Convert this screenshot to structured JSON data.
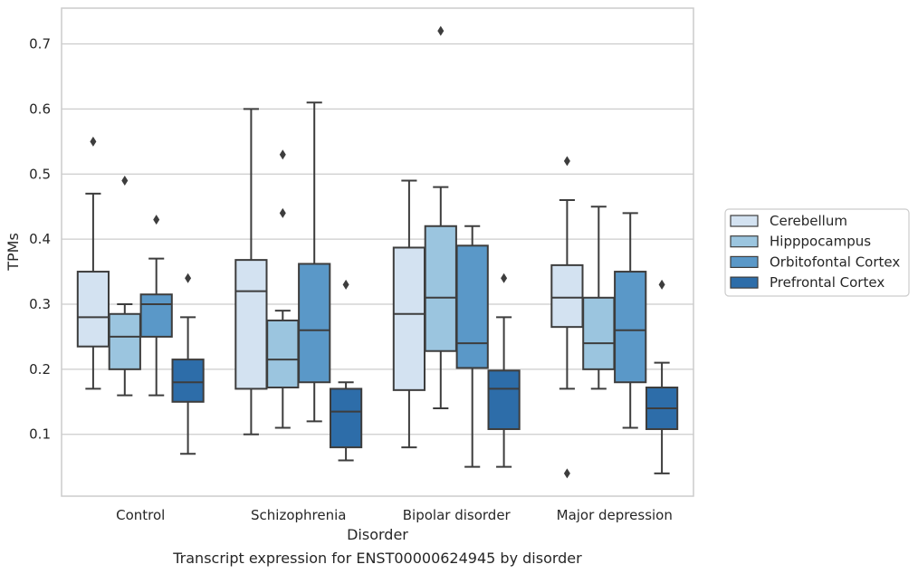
{
  "caption": "Transcript expression for ENST00000624945 by disorder",
  "chart_data": {
    "type": "box",
    "xlabel": "Disorder",
    "ylabel": "TPMs",
    "ylim": [
      0.005,
      0.755
    ],
    "yticks": [
      "0.1",
      "0.2",
      "0.3",
      "0.4",
      "0.5",
      "0.6",
      "0.7"
    ],
    "grid": "horizontal",
    "legend_position": "right",
    "categories": [
      "Control",
      "Schizophrenia",
      "Bipolar disorder",
      "Major depression"
    ],
    "series": [
      {
        "name": "Cerebellum",
        "color": "#d3e2f1",
        "boxes": [
          {
            "whisker_low": 0.17,
            "q1": 0.235,
            "median": 0.28,
            "q3": 0.35,
            "whisker_high": 0.47,
            "outliers": [
              0.55
            ]
          },
          {
            "whisker_low": 0.1,
            "q1": 0.17,
            "median": 0.32,
            "q3": 0.368,
            "whisker_high": 0.6,
            "outliers": []
          },
          {
            "whisker_low": 0.08,
            "q1": 0.168,
            "median": 0.285,
            "q3": 0.387,
            "whisker_high": 0.49,
            "outliers": []
          },
          {
            "whisker_low": 0.17,
            "q1": 0.265,
            "median": 0.31,
            "q3": 0.36,
            "whisker_high": 0.46,
            "outliers": [
              0.52,
              0.04
            ]
          }
        ]
      },
      {
        "name": "Hipppocampus",
        "color": "#9bc5df",
        "boxes": [
          {
            "whisker_low": 0.16,
            "q1": 0.2,
            "median": 0.25,
            "q3": 0.285,
            "whisker_high": 0.3,
            "outliers": [
              0.49
            ]
          },
          {
            "whisker_low": 0.11,
            "q1": 0.172,
            "median": 0.215,
            "q3": 0.275,
            "whisker_high": 0.29,
            "outliers": [
              0.53,
              0.44
            ]
          },
          {
            "whisker_low": 0.14,
            "q1": 0.228,
            "median": 0.31,
            "q3": 0.42,
            "whisker_high": 0.48,
            "outliers": [
              0.72
            ]
          },
          {
            "whisker_low": 0.17,
            "q1": 0.2,
            "median": 0.24,
            "q3": 0.31,
            "whisker_high": 0.45,
            "outliers": []
          }
        ]
      },
      {
        "name": "Orbitofontal Cortex",
        "color": "#5a98c8",
        "boxes": [
          {
            "whisker_low": 0.16,
            "q1": 0.25,
            "median": 0.3,
            "q3": 0.315,
            "whisker_high": 0.37,
            "outliers": [
              0.43
            ]
          },
          {
            "whisker_low": 0.12,
            "q1": 0.18,
            "median": 0.26,
            "q3": 0.362,
            "whisker_high": 0.61,
            "outliers": []
          },
          {
            "whisker_low": 0.05,
            "q1": 0.202,
            "median": 0.24,
            "q3": 0.39,
            "whisker_high": 0.42,
            "outliers": []
          },
          {
            "whisker_low": 0.11,
            "q1": 0.18,
            "median": 0.26,
            "q3": 0.35,
            "whisker_high": 0.44,
            "outliers": []
          }
        ]
      },
      {
        "name": "Prefrontal Cortex",
        "color": "#2d6da9",
        "boxes": [
          {
            "whisker_low": 0.07,
            "q1": 0.15,
            "median": 0.18,
            "q3": 0.215,
            "whisker_high": 0.28,
            "outliers": [
              0.34
            ]
          },
          {
            "whisker_low": 0.06,
            "q1": 0.08,
            "median": 0.135,
            "q3": 0.17,
            "whisker_high": 0.18,
            "outliers": [
              0.33
            ]
          },
          {
            "whisker_low": 0.05,
            "q1": 0.108,
            "median": 0.17,
            "q3": 0.198,
            "whisker_high": 0.28,
            "outliers": [
              0.34
            ]
          },
          {
            "whisker_low": 0.04,
            "q1": 0.108,
            "median": 0.14,
            "q3": 0.172,
            "whisker_high": 0.21,
            "outliers": [
              0.33
            ]
          }
        ]
      }
    ]
  }
}
